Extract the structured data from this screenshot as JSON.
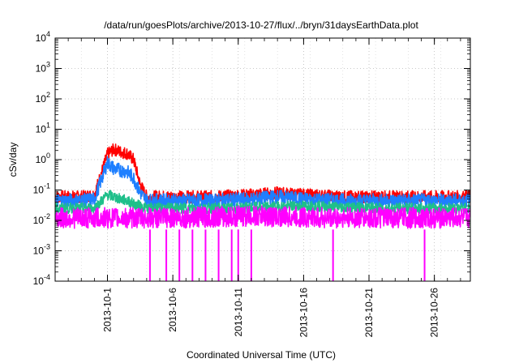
{
  "chart_data": {
    "type": "line",
    "title": "/data/run/goesPlots/archive/2013-10-27/flux/../bryn/31daysEarthData.plot",
    "xlabel": "Coordinated Universal Time (UTC)",
    "ylabel": "cSv/day",
    "yscale": "log",
    "ylim": [
      0.0001,
      10000
    ],
    "xlim": [
      "2013-09-27",
      "2013-10-28T18:00"
    ],
    "grid": true,
    "y_tick_labels": [
      {
        "base": "10",
        "exp": "-4"
      },
      {
        "base": "10",
        "exp": "-3"
      },
      {
        "base": "10",
        "exp": "-2"
      },
      {
        "base": "10",
        "exp": "-1"
      },
      {
        "base": "10",
        "exp": "0"
      },
      {
        "base": "10",
        "exp": "1"
      },
      {
        "base": "10",
        "exp": "2"
      },
      {
        "base": "10",
        "exp": "3"
      },
      {
        "base": "10",
        "exp": "4"
      }
    ],
    "x_ticks": [
      "2013-10-1",
      "2013-10-6",
      "2013-10-11",
      "2013-10-16",
      "2013-10-21",
      "2013-10-26"
    ],
    "colors": {
      "red": "#ff0000",
      "blue": "#1e7fff",
      "green": "#1fbf8a",
      "magenta": "#ff00ff"
    },
    "series": [
      {
        "color": "red",
        "x": [
          "2013-09-27",
          "2013-09-29",
          "2013-09-30",
          "2013-10-01",
          "2013-10-01T12:00",
          "2013-10-02",
          "2013-10-02T12:00",
          "2013-10-03",
          "2013-10-03T12:00",
          "2013-10-04",
          "2013-10-06",
          "2013-10-09",
          "2013-10-12",
          "2013-10-14",
          "2013-10-16",
          "2013-10-19",
          "2013-10-22",
          "2013-10-25",
          "2013-10-28T18:00"
        ],
        "values": [
          0.06,
          0.06,
          0.07,
          1.5,
          2.2,
          1.8,
          1.6,
          1.0,
          0.15,
          0.06,
          0.06,
          0.06,
          0.07,
          0.08,
          0.07,
          0.06,
          0.06,
          0.06,
          0.06
        ]
      },
      {
        "color": "blue",
        "x": [
          "2013-09-27",
          "2013-09-29",
          "2013-09-30",
          "2013-10-01",
          "2013-10-01T12:00",
          "2013-10-02",
          "2013-10-02T12:00",
          "2013-10-03",
          "2013-10-03T12:00",
          "2013-10-04",
          "2013-10-06",
          "2013-10-09",
          "2013-10-12",
          "2013-10-14",
          "2013-10-16",
          "2013-10-19",
          "2013-10-22",
          "2013-10-25",
          "2013-10-28T18:00"
        ],
        "values": [
          0.045,
          0.045,
          0.05,
          0.8,
          0.5,
          0.45,
          0.4,
          0.25,
          0.08,
          0.045,
          0.045,
          0.045,
          0.05,
          0.06,
          0.05,
          0.045,
          0.045,
          0.045,
          0.045
        ]
      },
      {
        "color": "green",
        "x": [
          "2013-09-27",
          "2013-09-30",
          "2013-10-01",
          "2013-10-01T12:00",
          "2013-10-02",
          "2013-10-02T12:00",
          "2013-10-03",
          "2013-10-04",
          "2013-10-10",
          "2013-10-16",
          "2013-10-22",
          "2013-10-28T18:00"
        ],
        "values": [
          0.025,
          0.025,
          0.07,
          0.06,
          0.05,
          0.045,
          0.035,
          0.025,
          0.025,
          0.03,
          0.025,
          0.025
        ]
      },
      {
        "color": "magenta",
        "x": [
          "2013-09-27",
          "2013-10-06",
          "2013-10-12",
          "2013-10-18",
          "2013-10-24",
          "2013-10-28T18:00"
        ],
        "values": [
          0.012,
          0.012,
          0.014,
          0.012,
          0.012,
          0.012
        ],
        "dropouts": [
          "2013-10-04T06:00",
          "2013-10-05T12:00",
          "2013-10-06T12:00",
          "2013-10-07T12:00",
          "2013-10-08T12:00",
          "2013-10-09T12:00",
          "2013-10-10T12:00",
          "2013-10-11T00:00",
          "2013-10-12T00:00",
          "2013-10-18T06:00",
          "2013-10-25T06:00"
        ]
      }
    ]
  }
}
